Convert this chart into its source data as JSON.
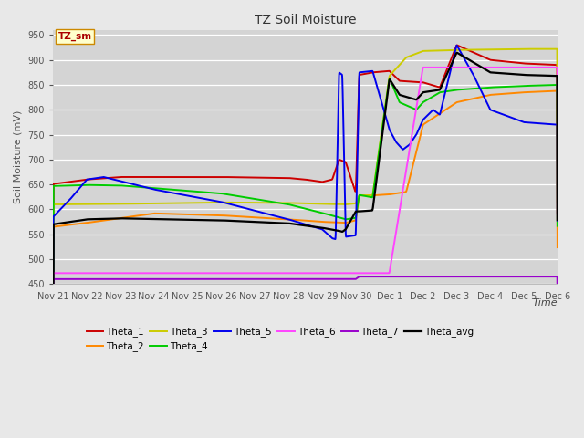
{
  "title": "TZ Soil Moisture",
  "ylabel": "Soil Moisture (mV)",
  "xlabel": "Time",
  "ylim": [
    450,
    960
  ],
  "yticks": [
    450,
    500,
    550,
    600,
    650,
    700,
    750,
    800,
    850,
    900,
    950
  ],
  "legend_label": "TZ_sm",
  "series_colors": {
    "Theta_1": "#cc0000",
    "Theta_2": "#ff8800",
    "Theta_3": "#cccc00",
    "Theta_4": "#00cc00",
    "Theta_5": "#0000ee",
    "Theta_6": "#ff44ff",
    "Theta_7": "#9900cc",
    "Theta_avg": "#000000"
  },
  "xtick_labels": [
    "Nov 21",
    "Nov 22",
    "Nov 23",
    "Nov 24",
    "Nov 25",
    "Nov 26",
    "Nov 27",
    "Nov 28",
    "Nov 29",
    "Nov 30",
    "Dec 1",
    "Dec 2",
    "Dec 3",
    "Dec 4",
    "Dec 5",
    "Dec 6"
  ]
}
